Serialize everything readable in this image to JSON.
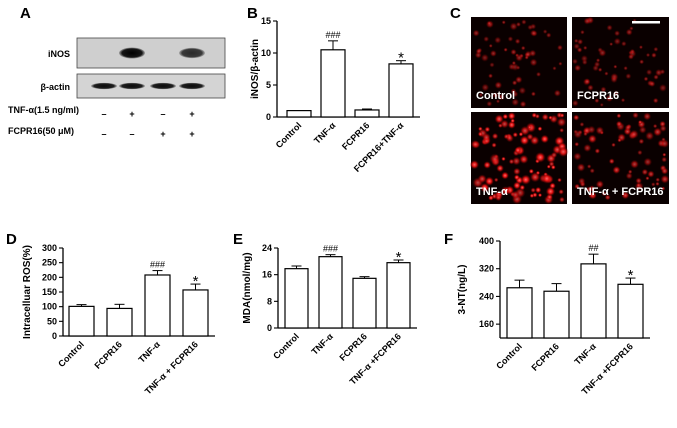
{
  "panels": {
    "A": {
      "label": "A",
      "blot_labels": [
        "iNOS",
        "β-actin"
      ],
      "treatments": [
        {
          "name": "TNF-α(1.5 ng/ml)",
          "marks": [
            "–",
            "+",
            "–",
            "+"
          ]
        },
        {
          "name": "FCPR16(50 μM)",
          "marks": [
            "–",
            "–",
            "+",
            "+"
          ]
        }
      ],
      "band_intensity": {
        "iNOS": [
          0.0,
          1.0,
          0.0,
          0.8
        ],
        "β-actin": [
          0.95,
          0.95,
          0.95,
          0.95
        ]
      }
    },
    "C": {
      "label": "C",
      "images": [
        {
          "label": "Control",
          "intensity": 0.35
        },
        {
          "label": "FCPR16",
          "intensity": 0.35
        },
        {
          "label": "TNF-α",
          "intensity": 1.0
        },
        {
          "label": "TNF-α + FCPR16",
          "intensity": 0.6
        }
      ]
    }
  },
  "chart_data": [
    {
      "id": "B",
      "panel_label": "B",
      "type": "bar",
      "categories": [
        "Control",
        "TNF-α",
        "FCPR16",
        "FCPR16+TNF-α"
      ],
      "values": [
        1.0,
        10.5,
        1.1,
        8.3
      ],
      "errors": [
        0.0,
        1.4,
        0.15,
        0.5
      ],
      "annotations": [
        "",
        "###",
        "",
        "*"
      ],
      "ylabel": "iNOS/β-actin",
      "ylim": [
        0,
        15
      ],
      "yticks": [
        0,
        5,
        10,
        15
      ],
      "title": "",
      "xlabel": "",
      "grid": false
    },
    {
      "id": "D",
      "panel_label": "D",
      "type": "bar",
      "categories": [
        "Control",
        "FCPR16",
        "TNF-α",
        "TNF-α + FCPR16"
      ],
      "values": [
        101,
        94,
        208,
        157
      ],
      "errors": [
        6,
        14,
        15,
        20
      ],
      "annotations": [
        "",
        "",
        "###",
        "*"
      ],
      "ylabel": "Intracelluar ROS(%)",
      "ylim": [
        0,
        300
      ],
      "yticks": [
        0,
        50,
        100,
        150,
        200,
        250,
        300
      ],
      "title": "",
      "xlabel": "",
      "grid": false
    },
    {
      "id": "E",
      "panel_label": "E",
      "type": "bar",
      "categories": [
        "Control",
        "TNF-α",
        "FCPR16",
        "TNF-α +FCPR16"
      ],
      "values": [
        17.8,
        21.4,
        14.9,
        19.6
      ],
      "errors": [
        0.8,
        0.6,
        0.5,
        0.8
      ],
      "annotations": [
        "",
        "###",
        "",
        "*"
      ],
      "ylabel": "MDA(nmol/mg)",
      "ylim": [
        0,
        24
      ],
      "yticks": [
        0,
        8,
        16,
        24
      ],
      "title": "",
      "xlabel": "",
      "grid": false
    },
    {
      "id": "F",
      "panel_label": "F",
      "type": "bar",
      "categories": [
        "Control",
        "FCPR16",
        "TNF-α",
        "TNF-α +FCPR16"
      ],
      "values": [
        265,
        255,
        334,
        275
      ],
      "errors": [
        22,
        22,
        28,
        18
      ],
      "annotations": [
        "",
        "",
        "##",
        "*"
      ],
      "ylabel": "3-NT(ng/L)",
      "ylim": [
        120,
        400
      ],
      "yticks": [
        160,
        240,
        320,
        400
      ],
      "title": "",
      "xlabel": "",
      "grid": false
    }
  ]
}
